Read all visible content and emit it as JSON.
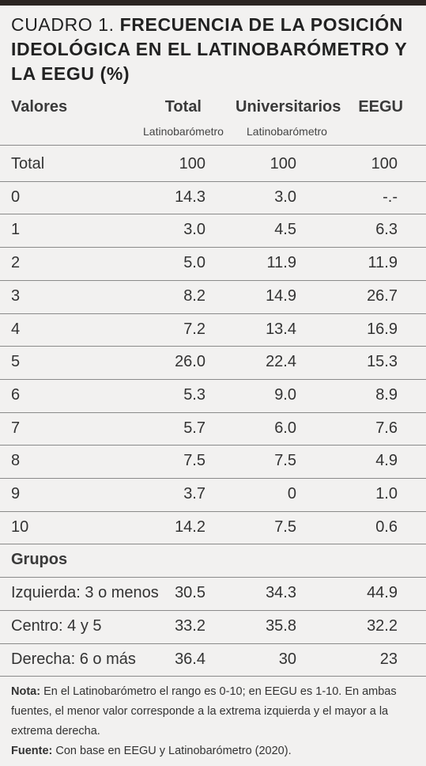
{
  "title": {
    "lead": "CUADRO 1. ",
    "bold": "FRECUENCIA DE LA POSICIÓN IDEOLÓGICA EN EL LATINOBARÓMETRO Y LA EEGU (%)"
  },
  "header": {
    "col0": "Valores",
    "col1": "Total",
    "col2": "Universitarios",
    "col3": "EEGU",
    "sub1": "Latinobarómetro",
    "sub2": "Latinobarómetro"
  },
  "rows": [
    {
      "label": "Total",
      "total": "100",
      "univ": "100",
      "eegu": "100"
    },
    {
      "label": "0",
      "total": "14.3",
      "univ": "3.0",
      "eegu": "-.-"
    },
    {
      "label": "1",
      "total": "3.0",
      "univ": "4.5",
      "eegu": "6.3"
    },
    {
      "label": "2",
      "total": "5.0",
      "univ": "11.9",
      "eegu": "11.9"
    },
    {
      "label": "3",
      "total": "8.2",
      "univ": "14.9",
      "eegu": "26.7"
    },
    {
      "label": "4",
      "total": "7.2",
      "univ": "13.4",
      "eegu": "16.9"
    },
    {
      "label": "5",
      "total": "26.0",
      "univ": "22.4",
      "eegu": "15.3"
    },
    {
      "label": "6",
      "total": "5.3",
      "univ": "9.0",
      "eegu": "8.9"
    },
    {
      "label": "7",
      "total": "5.7",
      "univ": "6.0",
      "eegu": "7.6"
    },
    {
      "label": "8",
      "total": "7.5",
      "univ": "7.5",
      "eegu": "4.9"
    },
    {
      "label": "9",
      "total": "3.7",
      "univ": "0",
      "eegu": "1.0"
    },
    {
      "label": "10",
      "total": "14.2",
      "univ": "7.5",
      "eegu": "0.6"
    }
  ],
  "groups_heading": "Grupos",
  "groups": [
    {
      "label": "Izquierda: 3 o menos",
      "total": "30.5",
      "univ": "34.3",
      "eegu": "44.9"
    },
    {
      "label": "Centro: 4 y 5",
      "total": "33.2",
      "univ": "35.8",
      "eegu": "32.2"
    },
    {
      "label": "Derecha: 6 o más",
      "total": "36.4",
      "univ": "30",
      "eegu": "23"
    }
  ],
  "notes": {
    "nota_label": "Nota:",
    "nota_text": " En el Latinobarómetro el rango es 0-10; en EEGU es 1-10. En ambas fuentes, el menor valor corresponde a la extrema izquierda y el mayor a la extrema derecha.",
    "fuente_label": "Fuente:",
    "fuente_text": " Con base en EEGU y Latinobarómetro (2020)."
  }
}
